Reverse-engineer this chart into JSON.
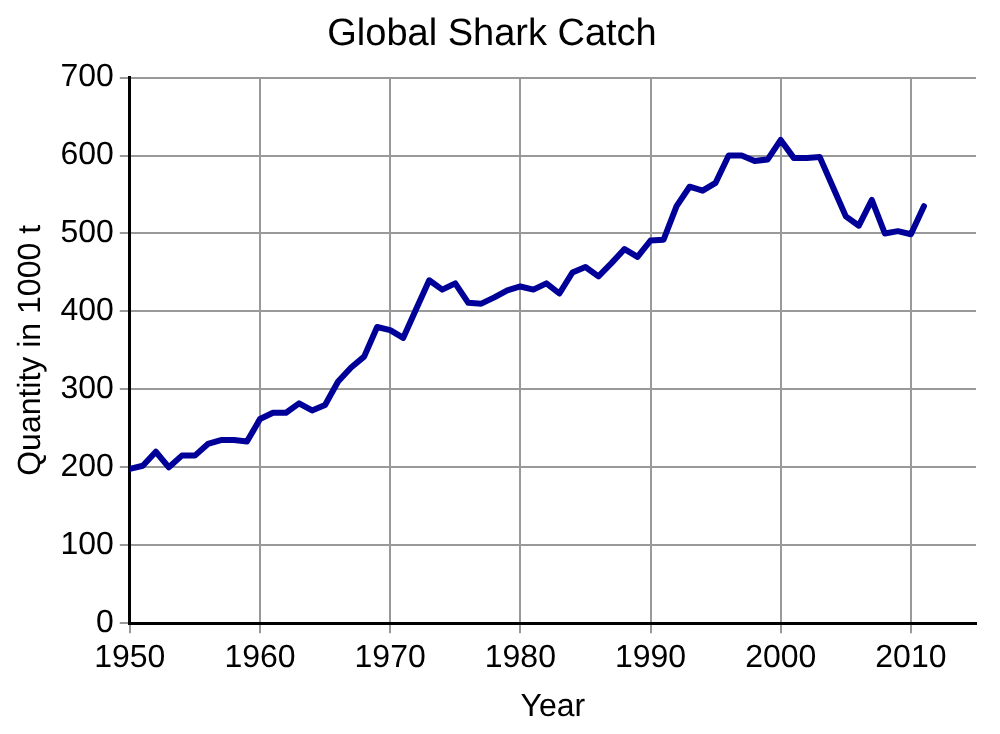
{
  "chart_data": {
    "type": "line",
    "title": "Global Shark Catch",
    "xlabel": "Year",
    "ylabel": "Quantity in 1000 t",
    "x": [
      1950,
      1951,
      1952,
      1953,
      1954,
      1955,
      1956,
      1957,
      1958,
      1959,
      1960,
      1961,
      1962,
      1963,
      1964,
      1965,
      1966,
      1967,
      1968,
      1969,
      1970,
      1971,
      1972,
      1973,
      1974,
      1975,
      1976,
      1977,
      1978,
      1979,
      1980,
      1981,
      1982,
      1983,
      1984,
      1985,
      1986,
      1987,
      1988,
      1989,
      1990,
      1991,
      1992,
      1993,
      1994,
      1995,
      1996,
      1997,
      1998,
      1999,
      2000,
      2001,
      2002,
      2003,
      2004,
      2005,
      2006,
      2007,
      2008,
      2009,
      2010,
      2011
    ],
    "series": [
      {
        "color": "#000099",
        "values": [
          198,
          202,
          220,
          200,
          215,
          215,
          230,
          235,
          235,
          233,
          262,
          270,
          270,
          282,
          273,
          280,
          310,
          328,
          342,
          380,
          376,
          366,
          403,
          440,
          428,
          436,
          411,
          410,
          418,
          427,
          432,
          428,
          436,
          423,
          450,
          457,
          445,
          462,
          480,
          470,
          491,
          492,
          535,
          560,
          555,
          565,
          600,
          600,
          593,
          595,
          620,
          597,
          597,
          598,
          560,
          522,
          510,
          543,
          500,
          503,
          499,
          535
        ]
      }
    ],
    "xlim": [
      1950,
      2015
    ],
    "xticks": [
      1950,
      1960,
      1970,
      1980,
      1990,
      2000,
      2010
    ],
    "ylim": [
      0,
      700
    ],
    "yticks": [
      0,
      100,
      200,
      300,
      400,
      500,
      600,
      700
    ],
    "grid": true,
    "legend": false,
    "marker": "none",
    "line_style": "solid"
  }
}
